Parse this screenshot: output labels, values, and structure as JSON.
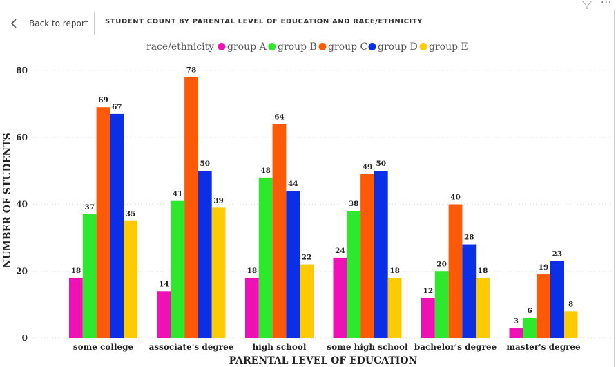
{
  "header": {
    "back_label": "Back to report",
    "report_title": "STUDENT COUNT BY PARENTAL LEVEL OF EDUCATION AND RACE/ETHNICITY",
    "back_icon": "chevron-left-icon",
    "filter_icon": "filter-icon",
    "more_icon": "more-options-icon",
    "more_glyph": "···"
  },
  "chart_data": {
    "type": "bar",
    "legend_title": "race/ethnicity",
    "legend_position": "top",
    "xlabel": "PARENTAL LEVEL OF EDUCATION",
    "ylabel": "NUMBER OF STUDENTS",
    "ylim": [
      0,
      80
    ],
    "yticks": [
      0,
      20,
      40,
      60,
      80
    ],
    "grid": true,
    "categories": [
      "some college",
      "associate's degree",
      "high school",
      "some high school",
      "bachelor's degree",
      "master's degree"
    ],
    "series": [
      {
        "name": "group A",
        "color": "#ee11b4",
        "values": [
          18,
          14,
          18,
          24,
          12,
          3
        ]
      },
      {
        "name": "group B",
        "color": "#2de82d",
        "values": [
          37,
          41,
          48,
          38,
          20,
          6
        ]
      },
      {
        "name": "group C",
        "color": "#fd5a08",
        "values": [
          69,
          78,
          64,
          49,
          40,
          19
        ]
      },
      {
        "name": "group D",
        "color": "#0a2fe6",
        "values": [
          67,
          50,
          44,
          50,
          28,
          23
        ]
      },
      {
        "name": "group E",
        "color": "#fdcb03",
        "values": [
          35,
          39,
          22,
          18,
          18,
          8
        ]
      }
    ]
  }
}
